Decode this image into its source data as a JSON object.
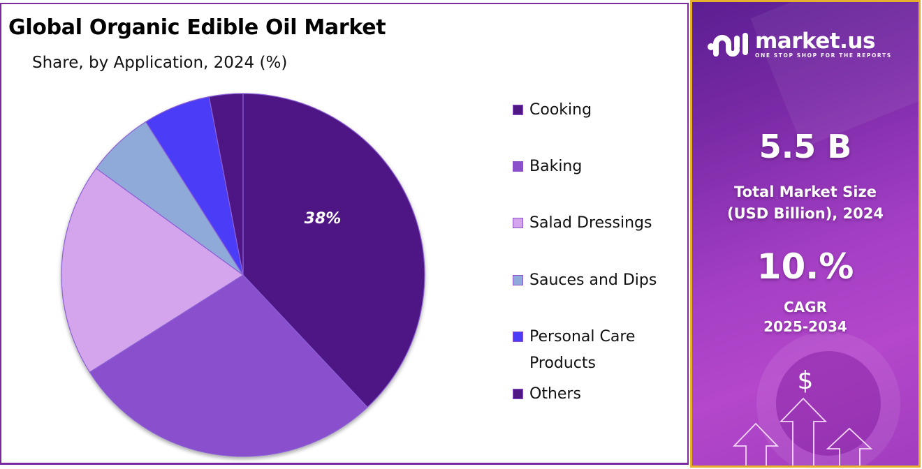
{
  "header": {
    "title": "Global Organic Edible Oil Market",
    "subtitle": "Share, by Application, 2024 (%)"
  },
  "chart_data": {
    "type": "pie",
    "title": "Global Organic Edible Oil Market",
    "subtitle": "Share, by Application, 2024 (%)",
    "categories": [
      "Cooking",
      "Baking",
      "Salad Dressings",
      "Sauces and Dips",
      "Personal Care Products",
      "Others"
    ],
    "values": [
      38,
      28,
      19,
      6,
      6,
      3
    ],
    "colors": [
      "#4e1784",
      "#8a50cc",
      "#d4a5ec",
      "#8faad9",
      "#4b3cf7",
      "#4e1784"
    ],
    "data_labels": [
      {
        "category": "Cooking",
        "text": "38%"
      }
    ],
    "start_angle_deg": 0,
    "direction": "clockwise",
    "legend_position": "right"
  },
  "legend": {
    "items": [
      {
        "label": "Cooking",
        "color": "#4e1784"
      },
      {
        "label": "Baking",
        "color": "#8a50cc"
      },
      {
        "label": "Salad Dressings",
        "color": "#d4a5ec"
      },
      {
        "label": "Sauces and Dips",
        "color": "#8faad9"
      },
      {
        "label": "Personal Care Products",
        "line1": "Personal Care",
        "line2": "Products",
        "color": "#4b3cf7"
      },
      {
        "label": "Others",
        "color": "#4e1784"
      }
    ]
  },
  "pie_label": "38%",
  "sidebar": {
    "brand": "market.us",
    "tagline": "ONE STOP SHOP FOR THE REPORTS",
    "market_size_value": "5.5 B",
    "market_size_label_1": "Total Market Size",
    "market_size_label_2": "(USD Billion), 2024",
    "cagr_value": "10.%",
    "cagr_label_1": "CAGR",
    "cagr_label_2": "2025-2034",
    "dollar_symbol": "$"
  },
  "colors": {
    "frame_border": "#7b2a9e",
    "sidebar_border": "#e7b02a",
    "sidebar_bg_start": "#5b1f92",
    "sidebar_bg_end": "#b447cb"
  }
}
